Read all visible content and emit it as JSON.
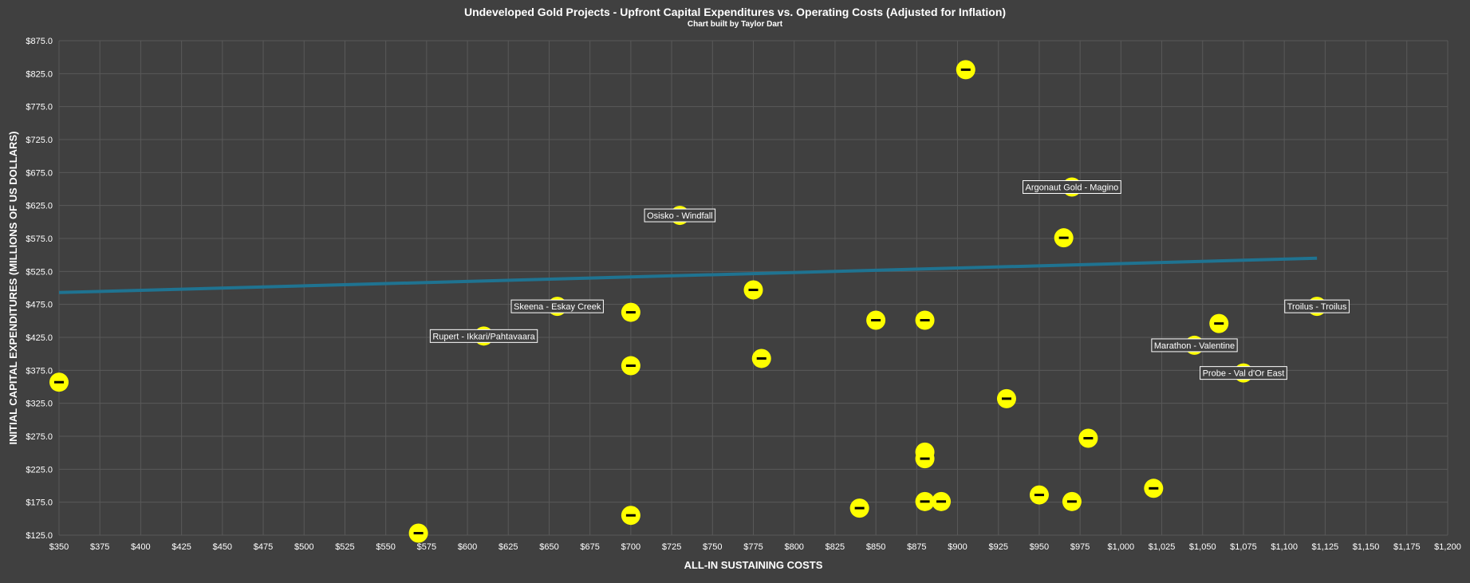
{
  "chart_data": {
    "type": "scatter",
    "title": "Undeveloped Gold Projects - Upfront Capital Expenditures vs. Operating Costs (Adjusted for Inflation)",
    "subtitle": "Chart built by Taylor Dart",
    "xlabel": "ALL-IN SUSTAINING COSTS",
    "ylabel": "INITIAL CAPITAL EXPENDITURES (MILLIONS OF US DOLLARS)",
    "xlim": [
      350,
      1200
    ],
    "ylim": [
      125,
      875
    ],
    "x_ticks": [
      "$350",
      "$375",
      "$400",
      "$425",
      "$450",
      "$475",
      "$500",
      "$525",
      "$550",
      "$575",
      "$600",
      "$625",
      "$650",
      "$675",
      "$700",
      "$725",
      "$750",
      "$775",
      "$800",
      "$825",
      "$850",
      "$875",
      "$900",
      "$925",
      "$950",
      "$975",
      "$1,000",
      "$1,025",
      "$1,050",
      "$1,075",
      "$1,100",
      "$1,125",
      "$1,150",
      "$1,175",
      "$1,200"
    ],
    "y_ticks": [
      "$125.0",
      "$175.0",
      "$225.0",
      "$275.0",
      "$325.0",
      "$375.0",
      "$425.0",
      "$475.0",
      "$525.0",
      "$575.0",
      "$625.0",
      "$675.0",
      "$725.0",
      "$775.0",
      "$825.0",
      "$875.0"
    ],
    "grid": true,
    "colors": {
      "background": "#404040",
      "point": "#ffff00",
      "point_marker": "#000000",
      "trendline": "#1f7391",
      "grid": "#595959",
      "label_bg": "#404040",
      "label_border": "#ffffff"
    },
    "points": [
      {
        "x": 350,
        "y": 357
      },
      {
        "x": 570,
        "y": 128
      },
      {
        "x": 610,
        "y": 427,
        "label": "Rupert - Ikkari/Pahtavaara"
      },
      {
        "x": 655,
        "y": 472,
        "label": "Skeena - Eskay Creek"
      },
      {
        "x": 700,
        "y": 463
      },
      {
        "x": 700,
        "y": 382
      },
      {
        "x": 700,
        "y": 155
      },
      {
        "x": 730,
        "y": 610,
        "label": "Osisko - Windfall"
      },
      {
        "x": 775,
        "y": 497
      },
      {
        "x": 780,
        "y": 393
      },
      {
        "x": 840,
        "y": 166
      },
      {
        "x": 850,
        "y": 451
      },
      {
        "x": 880,
        "y": 451
      },
      {
        "x": 880,
        "y": 251
      },
      {
        "x": 880,
        "y": 241
      },
      {
        "x": 880,
        "y": 176
      },
      {
        "x": 890,
        "y": 176
      },
      {
        "x": 905,
        "y": 831
      },
      {
        "x": 930,
        "y": 332
      },
      {
        "x": 950,
        "y": 186
      },
      {
        "x": 965,
        "y": 576
      },
      {
        "x": 970,
        "y": 653,
        "label": "Argonaut Gold - Magino"
      },
      {
        "x": 970,
        "y": 176
      },
      {
        "x": 980,
        "y": 272
      },
      {
        "x": 1020,
        "y": 196
      },
      {
        "x": 1045,
        "y": 413,
        "label": "Marathon - Valentine"
      },
      {
        "x": 1060,
        "y": 446
      },
      {
        "x": 1075,
        "y": 371,
        "label": "Probe - Val d'Or East"
      },
      {
        "x": 1120,
        "y": 472,
        "label": "Troilus - Troilus"
      }
    ],
    "trendline": {
      "x": [
        350,
        1120
      ],
      "y": [
        493,
        545
      ]
    }
  }
}
